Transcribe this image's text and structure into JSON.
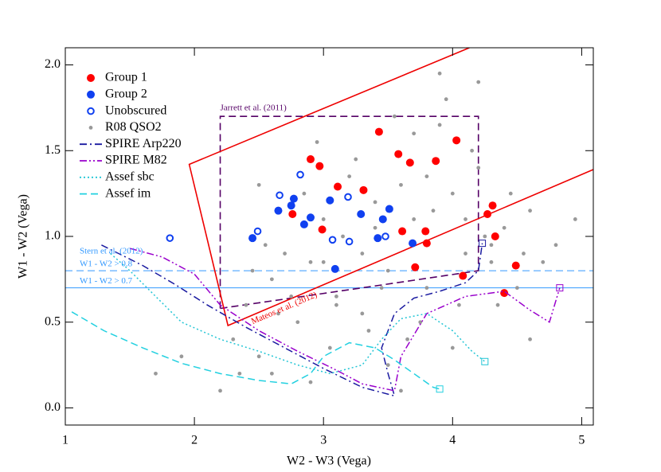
{
  "chart_data": {
    "type": "scatter",
    "x_label": "W2 - W3 (Vega)",
    "y_label": "W1 - W2 (Vega)",
    "xlim": [
      1,
      5.09
    ],
    "ylim": [
      -0.1,
      2.1
    ],
    "xticks": [
      1,
      2,
      3,
      4,
      5
    ],
    "yticks": [
      {
        "value": 0,
        "label": "0.0"
      },
      {
        "value": 0.5,
        "label": "0.5"
      },
      {
        "value": 1,
        "label": "1.0"
      },
      {
        "value": 1.5,
        "label": "1.5"
      },
      {
        "value": 2,
        "label": "2.0"
      }
    ],
    "legend": "upper left",
    "series": [
      {
        "name": "Group 1",
        "color": "#ff0000",
        "marker": "filled",
        "x": [
          3.43,
          3.58,
          3.67,
          4.03,
          3.87,
          2.9,
          2.97,
          3.11,
          3.31,
          2.76,
          4.27,
          4.31,
          4.33,
          2.99,
          3.61,
          3.79,
          3.8,
          3.71,
          4.49,
          4.08,
          4.4
        ],
        "values": [
          1.61,
          1.48,
          1.43,
          1.56,
          1.44,
          1.45,
          1.41,
          1.29,
          1.27,
          1.13,
          1.13,
          1.18,
          1.0,
          1.04,
          1.03,
          1.03,
          0.96,
          0.82,
          0.83,
          0.77,
          0.67
        ]
      },
      {
        "name": "Group 2",
        "color": "#1040f0",
        "marker": "filled",
        "x": [
          2.75,
          2.77,
          2.65,
          2.9,
          2.85,
          3.05,
          3.29,
          3.46,
          3.51,
          3.42,
          2.45,
          3.09,
          3.69
        ],
        "values": [
          1.18,
          1.22,
          1.15,
          1.11,
          1.07,
          1.21,
          1.13,
          1.1,
          1.16,
          0.99,
          0.99,
          0.81,
          0.96
        ]
      },
      {
        "name": "Unobscured",
        "color": "#1040f0",
        "marker": "open",
        "x": [
          2.82,
          2.66,
          3.19,
          1.81,
          2.49,
          3.07,
          3.2,
          3.48
        ],
        "values": [
          1.36,
          1.24,
          1.23,
          0.99,
          1.03,
          0.98,
          0.97,
          1.0
        ]
      },
      {
        "name": "R08 QSO2",
        "color": "#999999",
        "marker": "small",
        "x": [
          2.3,
          2.4,
          2.5,
          2.6,
          2.7,
          2.8,
          2.9,
          3.0,
          3.1,
          3.2,
          3.3,
          3.4,
          3.5,
          3.6,
          3.7,
          3.8,
          3.9,
          4.0,
          4.1,
          4.2,
          4.3,
          4.4,
          4.5,
          4.6,
          4.7,
          4.8,
          2.35,
          2.55,
          2.75,
          2.95,
          3.15,
          3.35,
          3.55,
          3.75,
          3.95,
          4.15,
          4.35,
          4.55,
          2.45,
          2.65,
          2.85,
          3.05,
          3.25,
          3.45,
          3.65,
          3.85,
          4.05,
          4.25,
          4.45,
          2.2,
          2.6,
          3.0,
          3.4,
          3.8,
          4.2,
          4.6,
          1.9,
          3.5,
          3.9,
          4.1,
          2.9,
          3.3,
          3.7,
          4.0,
          1.7,
          4.95,
          2.5,
          3.1,
          3.6,
          4.3
        ],
        "values": [
          0.4,
          0.6,
          0.3,
          0.75,
          0.9,
          0.5,
          0.85,
          1.1,
          0.65,
          1.35,
          0.55,
          1.2,
          0.8,
          1.3,
          1.1,
          0.7,
          1.65,
          1.25,
          0.9,
          1.4,
          0.95,
          1.05,
          0.7,
          1.15,
          0.85,
          0.95,
          0.2,
          0.95,
          0.65,
          1.55,
          1.0,
          0.45,
          1.7,
          0.5,
          1.8,
          1.5,
          0.6,
          0.9,
          0.8,
          0.55,
          1.25,
          0.35,
          1.45,
          0.7,
          0.4,
          1.15,
          0.6,
          1.0,
          1.25,
          0.1,
          0.2,
          0.85,
          1.05,
          1.35,
          1.9,
          0.4,
          0.3,
          0.25,
          1.95,
          1.1,
          0.15,
          0.9,
          1.6,
          0.35,
          0.2,
          1.1,
          1.3,
          0.6,
          0.1,
          0.85
        ]
      },
      {
        "name": "SPIRE Arp220",
        "color": "#1a1aa0",
        "line": "dash-dot",
        "x": [
          1.28,
          1.6,
          1.85,
          2.1,
          2.4,
          2.7,
          3.0,
          3.3,
          3.55,
          3.5,
          3.45,
          3.55,
          3.7,
          3.9,
          4.1,
          4.2,
          4.23
        ],
        "values": [
          0.95,
          0.83,
          0.72,
          0.6,
          0.47,
          0.35,
          0.23,
          0.12,
          0.07,
          0.2,
          0.35,
          0.55,
          0.64,
          0.68,
          0.73,
          0.8,
          0.96
        ]
      },
      {
        "name": "SPIRE M82",
        "color": "#9900cc",
        "line": "dash-dot-dot",
        "x": [
          1.5,
          1.75,
          2.0,
          2.2,
          2.5,
          2.8,
          3.1,
          3.3,
          3.55,
          3.6,
          3.8,
          4.1,
          4.4,
          4.6,
          4.75,
          4.83
        ],
        "values": [
          0.93,
          0.88,
          0.78,
          0.6,
          0.45,
          0.33,
          0.22,
          0.14,
          0.1,
          0.3,
          0.55,
          0.65,
          0.68,
          0.57,
          0.5,
          0.7
        ]
      },
      {
        "name": "Assef sbc",
        "color": "#22c5d5",
        "line": "dot",
        "x": [
          1.35,
          1.5,
          1.7,
          1.9,
          2.2,
          2.5,
          2.8,
          3.05,
          3.3,
          3.45,
          3.6,
          3.8,
          4.0,
          4.15,
          4.25
        ],
        "values": [
          0.9,
          0.8,
          0.65,
          0.5,
          0.4,
          0.33,
          0.25,
          0.2,
          0.25,
          0.4,
          0.52,
          0.55,
          0.45,
          0.33,
          0.27
        ]
      },
      {
        "name": "Assef im",
        "color": "#22d0e0",
        "line": "dash",
        "x": [
          1.05,
          1.3,
          1.6,
          1.9,
          2.2,
          2.5,
          2.75,
          2.9,
          3.0,
          3.2,
          3.4,
          3.55,
          3.7,
          3.85,
          3.9
        ],
        "values": [
          0.56,
          0.45,
          0.35,
          0.26,
          0.2,
          0.16,
          0.14,
          0.2,
          0.3,
          0.38,
          0.35,
          0.28,
          0.2,
          0.12,
          0.11
        ]
      }
    ],
    "regions": [
      {
        "name": "Jarrett et al. (2011)",
        "color": "#550066",
        "style": "dash",
        "x": [
          2.2,
          2.2,
          4.2,
          4.2,
          3.39,
          2.2
        ],
        "y": [
          0.58,
          1.7,
          1.7,
          0.8,
          0.71,
          0.58
        ]
      },
      {
        "name": "Mateos et al. (2012)",
        "color": "#ee0000",
        "style": "solid",
        "x": [
          4.13,
          1.96,
          2.26,
          5.09
        ],
        "y": [
          2.1,
          1.42,
          0.48,
          1.39
        ]
      }
    ],
    "hlines": [
      {
        "value": 0.8,
        "label": "W1 - W2 > 0.8",
        "color": "#3399ff",
        "style": "dash"
      },
      {
        "value": 0.7,
        "label": "W1 - W2 > 0.7",
        "color": "#3399ff",
        "style": "solid"
      }
    ],
    "annotation": "Stern et al. (2012)"
  }
}
